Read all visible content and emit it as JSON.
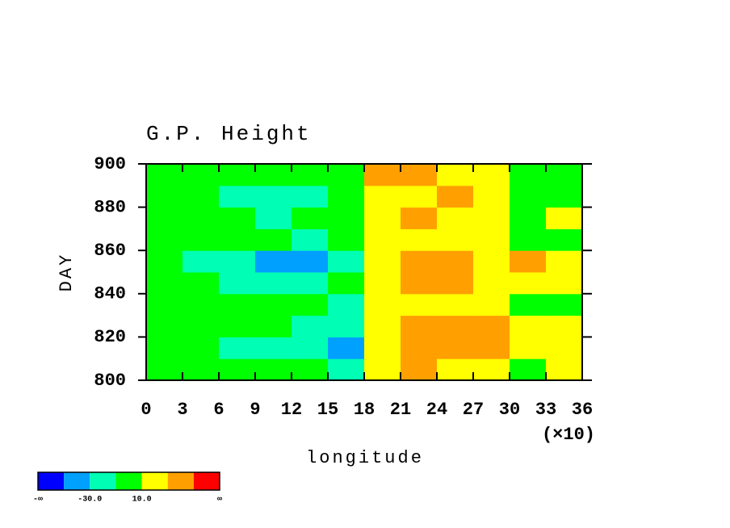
{
  "chart_data": {
    "type": "heatmap",
    "title": "G.P. Height",
    "x_label": "longitude",
    "y_label": "DAY",
    "x_multiplier": "(×10)",
    "xlim": [
      0,
      36
    ],
    "xticks": [
      0,
      3,
      6,
      9,
      12,
      15,
      18,
      21,
      24,
      27,
      30,
      33,
      36
    ],
    "ylim": [
      800,
      900
    ],
    "yticks": [
      800,
      820,
      840,
      860,
      880,
      900
    ],
    "z": [
      [
        0,
        5,
        -5,
        0,
        -10,
        -15,
        15,
        30,
        25,
        10,
        5,
        10
      ],
      [
        5,
        -5,
        -15,
        -12,
        -20,
        -35,
        20,
        40,
        45,
        30,
        25,
        15
      ],
      [
        0,
        5,
        0,
        -5,
        -15,
        -25,
        15,
        35,
        40,
        30,
        25,
        10
      ],
      [
        -5,
        0,
        -10,
        5,
        0,
        -15,
        10,
        20,
        15,
        10,
        5,
        0
      ],
      [
        0,
        -10,
        -15,
        -20,
        -25,
        5,
        25,
        35,
        30,
        20,
        15,
        10
      ],
      [
        -5,
        -15,
        -25,
        -35,
        -40,
        -20,
        20,
        30,
        30,
        25,
        30,
        25
      ],
      [
        0,
        5,
        -5,
        -10,
        -15,
        5,
        15,
        25,
        15,
        10,
        5,
        0
      ],
      [
        5,
        0,
        -10,
        -15,
        -5,
        0,
        20,
        30,
        25,
        15,
        5,
        10
      ],
      [
        -5,
        -10,
        -20,
        -25,
        -15,
        -5,
        15,
        25,
        30,
        20,
        5,
        0
      ],
      [
        0,
        5,
        0,
        -5,
        -10,
        -5,
        30,
        35,
        20,
        10,
        5,
        0
      ]
    ],
    "colorbar": {
      "levels": [
        -50,
        -30,
        -10,
        10,
        30,
        50
      ],
      "colors": [
        "#0000ff",
        "#00a0ff",
        "#00ffb4",
        "#00ff00",
        "#ffff00",
        "#ffa000",
        "#ff0000"
      ],
      "labels": [
        "-∞",
        "-30.0",
        "10.0",
        "∞"
      ]
    }
  }
}
